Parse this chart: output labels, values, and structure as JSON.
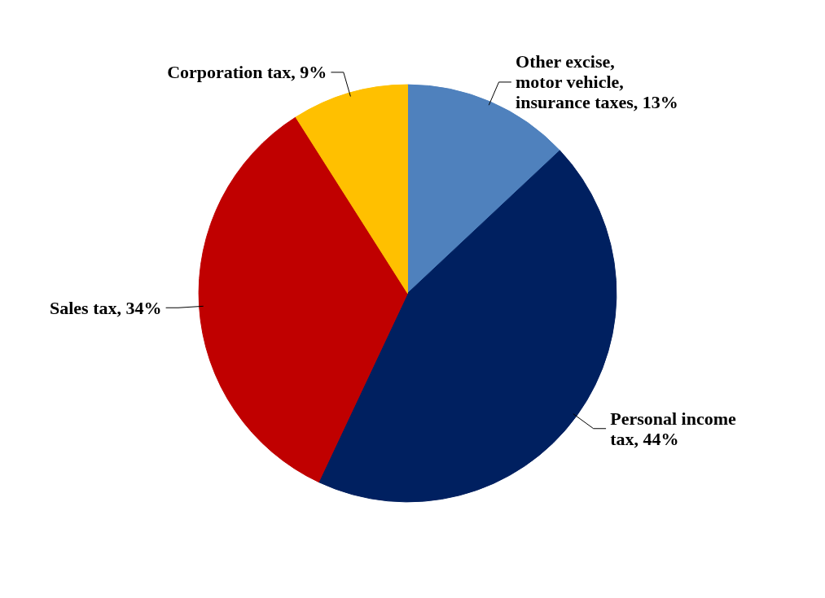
{
  "chart_data": {
    "type": "pie",
    "categories": [
      "Other excise, motor vehicle, insurance taxes",
      "Personal income tax",
      "Sales tax",
      "Corporation tax"
    ],
    "values": [
      13,
      44,
      34,
      9
    ],
    "value_labels": [
      "13%",
      "44%",
      "34%",
      "9%"
    ],
    "colors": [
      "#4f81bd",
      "#002060",
      "#c00000",
      "#ffc000"
    ]
  }
}
